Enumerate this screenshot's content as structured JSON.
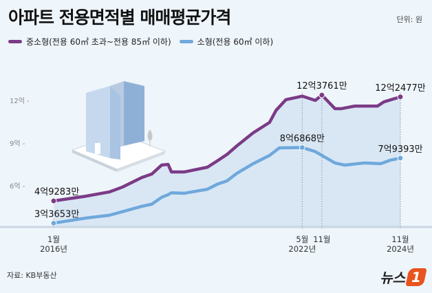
{
  "title": "아파트 전용면적별 매매평균가격",
  "unit": "단위: 원",
  "legend": [
    {
      "label": "중소형(전용 60㎡ 초과~전용 85㎡ 이하)",
      "color": "#7b3b86"
    },
    {
      "label": "소형(전용 60㎡ 이하)",
      "color": "#6fa8dc"
    }
  ],
  "source": "자료: KB부동산",
  "logo": {
    "text": "뉴스",
    "mark": "1"
  },
  "chart_data": {
    "type": "line",
    "ylabel_unit": "억",
    "ylim": [
      3.1,
      13.5
    ],
    "yticks": [
      {
        "value": 6,
        "label": "6억 -"
      },
      {
        "value": 9,
        "label": "9억 -"
      },
      {
        "value": 12,
        "label": "12억 -"
      }
    ],
    "xrange": [
      "2016-01",
      "2024-11"
    ],
    "xticks": [
      {
        "date": "2016-01",
        "label": [
          "1월",
          "2016년"
        ]
      },
      {
        "date": "2022-05",
        "label": [
          "5월",
          "2022년"
        ]
      },
      {
        "date": "2022-11",
        "label": [
          "11월",
          ""
        ]
      },
      {
        "date": "2024-11",
        "label": [
          "11월",
          "2024년"
        ]
      }
    ],
    "series": [
      {
        "name": "중소형(전용 60㎡ 초과~전용 85㎡ 이하)",
        "color": "#7b3b86",
        "points": [
          [
            "2016-01",
            4.9283
          ],
          [
            "2016-11",
            5.27
          ],
          [
            "2017-06",
            5.56
          ],
          [
            "2017-10",
            5.9
          ],
          [
            "2018-04",
            6.58
          ],
          [
            "2018-07",
            6.82
          ],
          [
            "2018-10",
            7.45
          ],
          [
            "2018-12",
            7.5
          ],
          [
            "2019-01",
            6.97
          ],
          [
            "2019-05",
            6.97
          ],
          [
            "2019-12",
            7.3
          ],
          [
            "2020-03",
            7.74
          ],
          [
            "2020-06",
            8.2
          ],
          [
            "2020-09",
            8.8
          ],
          [
            "2021-02",
            9.72
          ],
          [
            "2021-07",
            10.45
          ],
          [
            "2021-09",
            11.3
          ],
          [
            "2021-12",
            12.05
          ],
          [
            "2022-05",
            12.3
          ],
          [
            "2022-09",
            12.0
          ],
          [
            "2022-11",
            12.3761
          ],
          [
            "2023-03",
            11.42
          ],
          [
            "2023-05",
            11.42
          ],
          [
            "2023-09",
            11.6
          ],
          [
            "2024-04",
            11.6
          ],
          [
            "2024-06",
            11.9
          ],
          [
            "2024-11",
            12.2477
          ]
        ],
        "annotations": [
          {
            "date": "2016-01",
            "label": "4억9283만"
          },
          {
            "date": "2022-11",
            "label": "12억3761만"
          },
          {
            "date": "2024-11",
            "label": "12억2477만"
          }
        ]
      },
      {
        "name": "소형(전용 60㎡ 이하)",
        "color": "#6fa8dc",
        "points": [
          [
            "2016-01",
            3.3653
          ],
          [
            "2016-11",
            3.73
          ],
          [
            "2017-06",
            3.92
          ],
          [
            "2018-04",
            4.55
          ],
          [
            "2018-07",
            4.7
          ],
          [
            "2018-10",
            5.18
          ],
          [
            "2018-12",
            5.37
          ],
          [
            "2019-01",
            5.5
          ],
          [
            "2019-05",
            5.47
          ],
          [
            "2019-12",
            5.75
          ],
          [
            "2020-03",
            6.1
          ],
          [
            "2020-06",
            6.34
          ],
          [
            "2020-09",
            6.87
          ],
          [
            "2021-02",
            7.55
          ],
          [
            "2021-07",
            8.13
          ],
          [
            "2021-10",
            8.66
          ],
          [
            "2022-05",
            8.6868
          ],
          [
            "2022-09",
            8.4
          ],
          [
            "2023-03",
            7.6
          ],
          [
            "2023-06",
            7.45
          ],
          [
            "2023-12",
            7.6
          ],
          [
            "2024-05",
            7.55
          ],
          [
            "2024-08",
            7.8
          ],
          [
            "2024-11",
            7.9393
          ]
        ],
        "annotations": [
          {
            "date": "2016-01",
            "label": "3억3653만"
          },
          {
            "date": "2022-05",
            "label": "8억6868만"
          },
          {
            "date": "2024-11",
            "label": "7억9393만"
          }
        ]
      }
    ]
  }
}
